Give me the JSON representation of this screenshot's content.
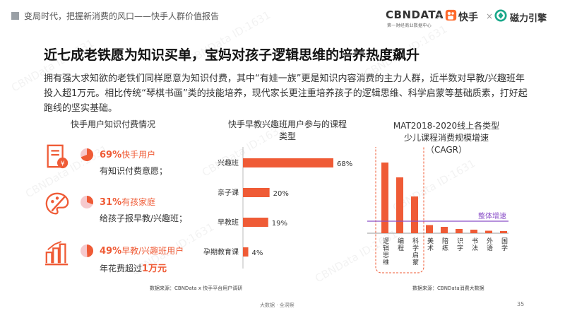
{
  "header": {
    "title": "变局时代，把握新消费的风口——快手人群价值报告",
    "brand_cbn": "CBNDATA",
    "brand_cbn_sub": "第一财经商业数据中心",
    "x_mark": "×",
    "brand_kuai": "快手",
    "brand_cili": "磁力引擎"
  },
  "headline": "近七成老铁愿为知识买单，宝妈对孩子逻辑思维的培养热度飙升",
  "intro": "拥有强大求知欲的老铁们同样愿意为知识付费，其中“有娃一族”更是知识内容消费的主力人群，近半数对早教/兴趣班年投入超1万元。相比传统“琴棋书画”类的技能培养，现代家长更注重培养孩子的逻辑思维、科学启蒙等基础质素，打好起跑线的坚实基础。",
  "left_panel": {
    "title": "快手用户知识付费情况",
    "items": [
      {
        "pct_text": "69%",
        "line1_rest": "快手用户",
        "line2": "有知识付费意愿；",
        "pct": 69,
        "icon": "bill-document-icon"
      },
      {
        "pct_text": "31%",
        "line1_rest": "有孩家庭",
        "line2": "给孩子报早教/兴趣班；",
        "pct": 31,
        "icon": "palette-icon"
      },
      {
        "pct_text": "49%",
        "line1_rest": "早教/兴趣班用户",
        "line2_pre": "年花费超过",
        "line2_hl": "1万元",
        "pct": 49,
        "icon": "growth-chart-icon"
      }
    ]
  },
  "chart_data": [
    {
      "type": "bar",
      "orientation": "horizontal",
      "title": "快手早教兴趣班用户参与的课程类型",
      "categories": [
        "兴趣班",
        "亲子课",
        "早教班",
        "孕期教育课"
      ],
      "values": [
        68,
        20,
        19,
        4
      ],
      "value_labels": [
        "68%",
        "20%",
        "19%",
        "4%"
      ],
      "unit": "%",
      "color": "#ef5b36",
      "grid": false,
      "source": "数据来源：CBNData x 快手平台用户调研"
    },
    {
      "type": "bar",
      "orientation": "vertical",
      "title": "MAT2018-2020线上各类型少儿课程消费规模增速（CAGR）",
      "title_line1": "MAT2018-2020线上各类型",
      "title_line2": "少儿课程消费规模增速（CAGR）",
      "categories": [
        "逻辑思维",
        "编程",
        "科学启蒙",
        "美术",
        "陪练",
        "识字",
        "书法",
        "外语",
        "国学"
      ],
      "values": [
        1.0,
        0.79,
        0.52,
        0.115,
        0.09,
        0.06,
        0.05,
        0.035,
        0.03
      ],
      "value_note": "relative bar heights; no value axis or data labels are printed",
      "highlighted_categories": [
        "逻辑思维",
        "编程",
        "科学启蒙"
      ],
      "reference_line": {
        "label": "整体增速",
        "value": 0.17,
        "color": "#8a4fc8"
      },
      "color": "#ef5b36",
      "grid": false,
      "source": "数据来源：CBNData消费大数据"
    }
  ],
  "footer": "大数据 · 全洞察",
  "page_number": "35",
  "watermark": "CBNData ID:1631",
  "colors": {
    "accent": "#ef5b36",
    "pie_bg": "#f6c9cd",
    "purple": "#8a4fc8"
  }
}
